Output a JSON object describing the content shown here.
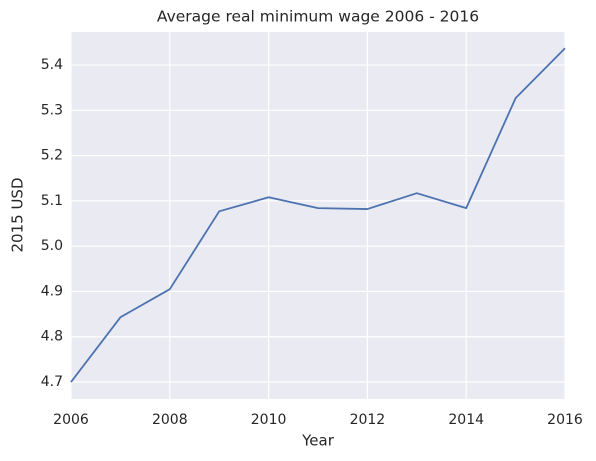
{
  "chart_data": {
    "type": "line",
    "title": "Average real minimum wage 2006 - 2016",
    "x_label": "Year",
    "y_label": "2015 USD",
    "x": [
      2006,
      2007,
      2008,
      2009,
      2010,
      2011,
      2012,
      2013,
      2014,
      2015,
      2016
    ],
    "series": [
      {
        "name": "Average real minimum wage",
        "color": "#4c72b0",
        "values": [
          4.7,
          4.843,
          4.905,
          5.077,
          5.108,
          5.084,
          5.082,
          5.117,
          5.084,
          5.327,
          5.437
        ]
      }
    ],
    "xlim": [
      2006,
      2016
    ],
    "xticks": [
      2006,
      2008,
      2010,
      2012,
      2014,
      2016
    ],
    "ylim": [
      4.6625,
      5.473
    ],
    "yticks": [
      4.7,
      4.8,
      4.9,
      {
        "value": 5,
        "label": "5.0"
      },
      5.1,
      5.2,
      5.3,
      5.4
    ],
    "grid": true
  }
}
